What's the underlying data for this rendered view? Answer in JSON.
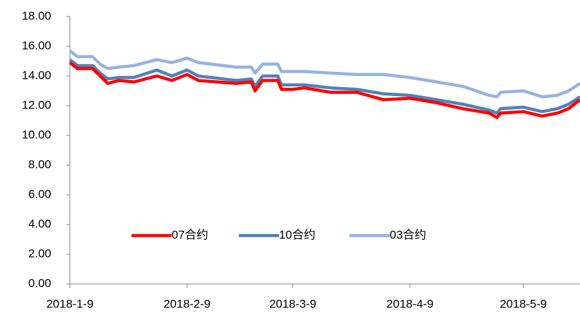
{
  "chart_data": {
    "type": "line",
    "x": [
      "2018-1-9",
      "2018-1-11",
      "2018-1-15",
      "2018-1-17",
      "2018-1-19",
      "2018-1-22",
      "2018-1-26",
      "2018-2-1",
      "2018-2-5",
      "2018-2-9",
      "2018-2-12",
      "2018-2-22",
      "2018-2-26",
      "2018-2-27",
      "2018-3-1",
      "2018-3-5",
      "2018-3-6",
      "2018-3-9",
      "2018-3-12",
      "2018-3-19",
      "2018-3-26",
      "2018-4-2",
      "2018-4-9",
      "2018-4-16",
      "2018-4-23",
      "2018-4-30",
      "2018-5-2",
      "2018-5-3",
      "2018-5-9",
      "2018-5-14",
      "2018-5-18",
      "2018-5-21",
      "2018-5-24"
    ],
    "series": [
      {
        "name": "07合约",
        "color": "#ff0000",
        "values": [
          14.9,
          14.5,
          14.5,
          14.0,
          13.5,
          13.7,
          13.6,
          14.0,
          13.7,
          14.1,
          13.7,
          13.5,
          13.6,
          13.0,
          13.7,
          13.7,
          13.1,
          13.1,
          13.2,
          12.9,
          12.9,
          12.4,
          12.5,
          12.2,
          11.8,
          11.5,
          11.2,
          11.5,
          11.6,
          11.3,
          11.5,
          11.8,
          12.4
        ]
      },
      {
        "name": "10合约",
        "color": "#4f81bd",
        "values": [
          15.1,
          14.7,
          14.7,
          14.2,
          13.8,
          13.9,
          13.9,
          14.4,
          14.0,
          14.4,
          14.0,
          13.7,
          13.8,
          13.3,
          14.0,
          14.0,
          13.4,
          13.4,
          13.4,
          13.2,
          13.1,
          12.8,
          12.7,
          12.4,
          12.1,
          11.7,
          11.5,
          11.8,
          11.9,
          11.6,
          11.8,
          12.1,
          12.6
        ]
      },
      {
        "name": "03合约",
        "color": "#95b3e0",
        "values": [
          15.7,
          15.3,
          15.3,
          14.8,
          14.5,
          14.6,
          14.7,
          15.1,
          14.9,
          15.2,
          14.9,
          14.6,
          14.6,
          14.2,
          14.8,
          14.8,
          14.3,
          14.3,
          14.3,
          14.2,
          14.1,
          14.1,
          13.9,
          13.6,
          13.3,
          12.7,
          12.6,
          12.9,
          13.0,
          12.6,
          12.7,
          13.0,
          13.5
        ]
      }
    ],
    "xlim": [
      "2018-1-9",
      "2018-5-24"
    ],
    "xticks": [
      "2018-1-9",
      "2018-2-9",
      "2018-3-9",
      "2018-4-9",
      "2018-5-9"
    ],
    "ylim": [
      0,
      18
    ],
    "yticks": [
      {
        "value": 0,
        "label": "0.00"
      },
      {
        "value": 2,
        "label": "2.00"
      },
      {
        "value": 4,
        "label": "4.00"
      },
      {
        "value": 6,
        "label": "6.00"
      },
      {
        "value": 8,
        "label": "8.00"
      },
      {
        "value": 10,
        "label": "10.00"
      },
      {
        "value": 12,
        "label": "12.00"
      },
      {
        "value": 14,
        "label": "14.00"
      },
      {
        "value": 16,
        "label": "16.00"
      },
      {
        "value": 18,
        "label": "18.00"
      }
    ],
    "legend": "center"
  }
}
